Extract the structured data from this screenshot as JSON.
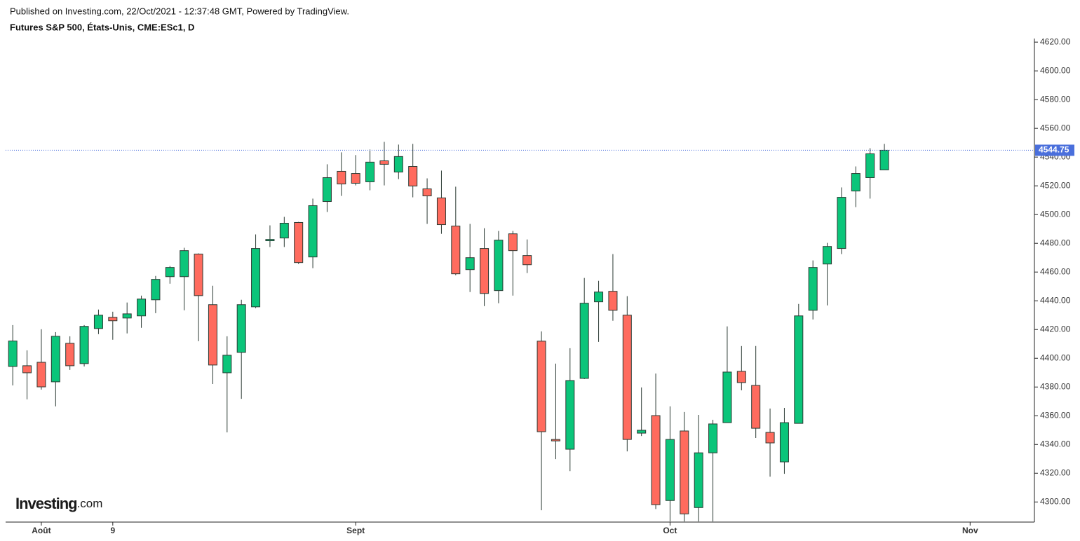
{
  "header": {
    "published": "Published on Investing.com, 22/Oct/2021 - 12:37:48 GMT, Powered by TradingView.",
    "instrument": "Futures S&P 500, États-Unis, CME:ESc1, D"
  },
  "logo": {
    "name": "Investing",
    "suffix": ".com"
  },
  "chart_data": {
    "type": "candlestick",
    "x": [
      0,
      1,
      2,
      3,
      4,
      5,
      6,
      7,
      8,
      9,
      10,
      11,
      12,
      13,
      14,
      15,
      16,
      17,
      18,
      19,
      20,
      21,
      22,
      23,
      24,
      25,
      26,
      27,
      28,
      29,
      30,
      31,
      32,
      33,
      34,
      35,
      36,
      37,
      38,
      39,
      40,
      41,
      42,
      43,
      44,
      45,
      46,
      47,
      48,
      49,
      50,
      51,
      52,
      53,
      54,
      55,
      56,
      57,
      58,
      59,
      60,
      61
    ],
    "open": [
      4394.3,
      4394.8,
      4397.2,
      4383.6,
      4410.4,
      4396.3,
      4420.7,
      4428.5,
      4428.0,
      4429.5,
      4440.7,
      4456.8,
      4456.8,
      4472.5,
      4437.3,
      4389.9,
      4404.1,
      4435.8,
      4481.8,
      4483.7,
      4494.5,
      4470.5,
      4509.1,
      4530.1,
      4528.6,
      4522.8,
      4537.4,
      4529.6,
      4533.5,
      4517.9,
      4511.6,
      4492.0,
      4461.7,
      4476.4,
      4447.1,
      4486.6,
      4471.5,
      4411.9,
      4343.5,
      4336.7,
      4386.0,
      4439.3,
      4446.6,
      4430.0,
      4347.9,
      4360.1,
      4301.0,
      4349.4,
      4296.1,
      4334.2,
      4355.2,
      4390.9,
      4381.1,
      4348.4,
      4327.9,
      4354.7,
      4433.4,
      4465.6,
      4476.4,
      4516.4,
      4525.7,
      4531.1
    ],
    "high": [
      4423.1,
      4405.5,
      4420.2,
      4418.2,
      4415.3,
      4423.1,
      4433.9,
      4432.4,
      4438.8,
      4443.6,
      4457.3,
      4464.2,
      4476.9,
      4473.0,
      4450.5,
      4415.3,
      4440.7,
      4486.2,
      4492.5,
      4498.4,
      4494.9,
      4511.1,
      4535.0,
      4543.3,
      4541.4,
      4545.3,
      4550.6,
      4548.7,
      4549.2,
      4525.2,
      4530.6,
      4519.4,
      4493.5,
      4490.5,
      4488.6,
      4488.6,
      4482.7,
      4418.7,
      4396.3,
      4407.0,
      4455.9,
      4453.9,
      4472.5,
      4443.2,
      4379.7,
      4389.4,
      4366.5,
      4362.6,
      4360.6,
      4357.2,
      4422.2,
      4408.5,
      4408.5,
      4365.0,
      4365.5,
      4437.8,
      4468.1,
      4480.3,
      4518.9,
      4533.5,
      4546.2,
      4549.2
    ],
    "low": [
      4381.1,
      4371.4,
      4378.2,
      4366.5,
      4391.9,
      4394.3,
      4416.8,
      4412.9,
      4417.3,
      4421.2,
      4431.4,
      4451.9,
      4433.4,
      4411.9,
      4382.1,
      4348.4,
      4371.8,
      4434.9,
      4477.4,
      4477.4,
      4465.6,
      4462.7,
      4501.8,
      4513.0,
      4520.3,
      4516.9,
      4520.3,
      4524.7,
      4512.0,
      4493.5,
      4486.6,
      4457.8,
      4446.1,
      4436.3,
      4438.3,
      4443.6,
      4459.3,
      4294.2,
      4329.8,
      4321.5,
      4385.5,
      4411.4,
      4426.1,
      4335.2,
      4345.9,
      4295.1,
      4286.4,
      4286.4,
      4286.4,
      4286.4,
      4355.2,
      4377.7,
      4344.5,
      4317.6,
      4319.6,
      4354.7,
      4427.0,
      4436.8,
      4472.5,
      4505.2,
      4511.1,
      4531.1
    ],
    "close": [
      4412.0,
      4389.9,
      4380.1,
      4415.3,
      4394.8,
      4422.2,
      4430.0,
      4426.1,
      4430.9,
      4441.2,
      4454.9,
      4463.2,
      4474.9,
      4443.6,
      4395.3,
      4402.1,
      4437.3,
      4476.4,
      4482.7,
      4494.0,
      4466.6,
      4506.2,
      4525.7,
      4521.3,
      4521.8,
      4536.5,
      4535.0,
      4540.4,
      4519.9,
      4513.0,
      4493.0,
      4458.8,
      4470.0,
      4445.1,
      4482.2,
      4474.9,
      4465.1,
      4348.9,
      4342.5,
      4384.5,
      4438.3,
      4446.1,
      4433.4,
      4343.5,
      4349.9,
      4298.1,
      4343.5,
      4291.7,
      4334.2,
      4354.3,
      4390.4,
      4383.1,
      4351.3,
      4341.1,
      4355.2,
      4429.5,
      4463.2,
      4477.8,
      4512.0,
      4528.6,
      4542.3,
      4544.75
    ],
    "up_color": "#0bc57a",
    "down_color": "#ff6b5e",
    "wick_color": "#2b3a33",
    "last_value": 4544.75,
    "last_color": "#4a6fdc",
    "xlim": [
      -0.5,
      71.5
    ],
    "xticks": [
      {
        "value": 2,
        "label": "Août"
      },
      {
        "value": 7,
        "label": "9"
      },
      {
        "value": 24,
        "label": "Sept"
      },
      {
        "value": 46,
        "label": "Oct"
      },
      {
        "value": 67,
        "label": "Nov"
      }
    ],
    "ylim": [
      4286,
      4622.5
    ],
    "yticks": [
      {
        "value": 4300,
        "label": "4300.00"
      },
      {
        "value": 4320,
        "label": "4320.00"
      },
      {
        "value": 4340,
        "label": "4340.00"
      },
      {
        "value": 4360,
        "label": "4360.00"
      },
      {
        "value": 4380,
        "label": "4380.00"
      },
      {
        "value": 4400,
        "label": "4400.00"
      },
      {
        "value": 4420,
        "label": "4420.00"
      },
      {
        "value": 4440,
        "label": "4440.00"
      },
      {
        "value": 4460,
        "label": "4460.00"
      },
      {
        "value": 4480,
        "label": "4480.00"
      },
      {
        "value": 4500,
        "label": "4500.00"
      },
      {
        "value": 4520,
        "label": "4520.00"
      },
      {
        "value": 4540,
        "label": "4540.00"
      },
      {
        "value": 4560,
        "label": "4560.00"
      },
      {
        "value": 4580,
        "label": "4580.00"
      },
      {
        "value": 4600,
        "label": "4600.00"
      },
      {
        "value": 4620,
        "label": "4620.00"
      }
    ]
  }
}
